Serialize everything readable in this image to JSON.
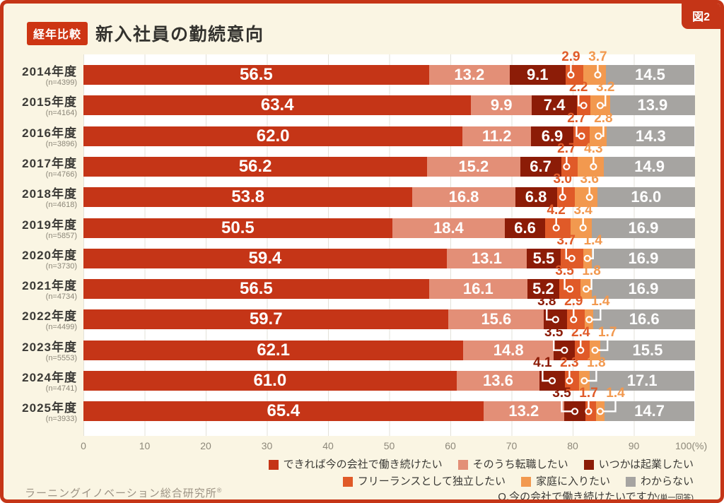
{
  "figure_tag": "図2",
  "header": {
    "badge": "経年比較",
    "title": "新入社員の勤続意向"
  },
  "chart_data": {
    "type": "bar",
    "stacked": true,
    "orientation": "horizontal",
    "title": "新入社員の勤続意向",
    "unit": "%",
    "xlim": [
      0,
      100
    ],
    "x_ticks": [
      "0",
      "10",
      "20",
      "30",
      "40",
      "50",
      "60",
      "70",
      "80",
      "90",
      "100(%)"
    ],
    "grid": true,
    "legend_position": "bottom-right",
    "series": [
      {
        "name": "できれば今の会社で働き続けたい",
        "color": "#c53517"
      },
      {
        "name": "そのうち転職したい",
        "color": "#e38f77"
      },
      {
        "name": "いつかは起業したい",
        "color": "#8c1c07"
      },
      {
        "name": "フリーランスとして独立したい",
        "color": "#e05a28"
      },
      {
        "name": "家庭に入りたい",
        "color": "#f2994f"
      },
      {
        "name": "わからない",
        "color": "#a6a4a1"
      }
    ],
    "categories": [
      {
        "year": "2014年度",
        "n": "(n=4399)"
      },
      {
        "year": "2015年度",
        "n": "(n=4164)"
      },
      {
        "year": "2016年度",
        "n": "(n=3896)"
      },
      {
        "year": "2017年度",
        "n": "(n=4766)"
      },
      {
        "year": "2018年度",
        "n": "(n=4618)"
      },
      {
        "year": "2019年度",
        "n": "(n=5857)"
      },
      {
        "year": "2020年度",
        "n": "(n=3730)"
      },
      {
        "year": "2021年度",
        "n": "(n=4734)"
      },
      {
        "year": "2022年度",
        "n": "(n=4499)"
      },
      {
        "year": "2023年度",
        "n": "(n=5553)"
      },
      {
        "year": "2024年度",
        "n": "(n=4741)"
      },
      {
        "year": "2025年度",
        "n": "(n=3933)"
      }
    ],
    "rows": [
      {
        "values": [
          "56.5",
          "13.2",
          "9.1",
          "2.9",
          "3.7",
          "14.5"
        ],
        "callouts": [
          3,
          4
        ]
      },
      {
        "values": [
          "63.4",
          "9.9",
          "7.4",
          "2.2",
          "3.2",
          "13.9"
        ],
        "callouts": [
          3,
          4
        ]
      },
      {
        "values": [
          "62.0",
          "11.2",
          "6.9",
          "2.7",
          "2.8",
          "14.3"
        ],
        "callouts": [
          3,
          4
        ]
      },
      {
        "values": [
          "56.2",
          "15.2",
          "6.7",
          "2.7",
          "4.3",
          "14.9"
        ],
        "callouts": [
          3,
          4
        ]
      },
      {
        "values": [
          "53.8",
          "16.8",
          "6.8",
          "3.0",
          "3.6",
          "16.0"
        ],
        "callouts": [
          3,
          4
        ]
      },
      {
        "values": [
          "50.5",
          "18.4",
          "6.6",
          "4.2",
          "3.4",
          "16.9"
        ],
        "callouts": [
          3,
          4
        ]
      },
      {
        "values": [
          "59.4",
          "13.1",
          "5.5",
          "3.7",
          "1.4",
          "16.9"
        ],
        "callouts": [
          3,
          4
        ]
      },
      {
        "values": [
          "56.5",
          "16.1",
          "5.2",
          "3.5",
          "1.8",
          "16.9"
        ],
        "callouts": [
          3,
          4
        ]
      },
      {
        "values": [
          "59.7",
          "15.6",
          "3.8",
          "2.9",
          "1.4",
          "16.6"
        ],
        "callouts": [
          2,
          3,
          4
        ]
      },
      {
        "values": [
          "62.1",
          "14.8",
          "3.5",
          "2.4",
          "1.7",
          "15.5"
        ],
        "callouts": [
          2,
          3,
          4
        ]
      },
      {
        "values": [
          "61.0",
          "13.6",
          "4.1",
          "2.3",
          "1.8",
          "17.1"
        ],
        "callouts": [
          2,
          3,
          4
        ]
      },
      {
        "values": [
          "65.4",
          "13.2",
          "3.5",
          "1.7",
          "1.4",
          "14.7"
        ],
        "callouts": [
          2,
          3,
          4
        ]
      }
    ]
  },
  "footer": {
    "source": "ラーニングイノベーション総合研究所",
    "source_mark": "®",
    "question": "Q.今の会社で働き続けたいですか",
    "question_note": "(単一回答)"
  }
}
